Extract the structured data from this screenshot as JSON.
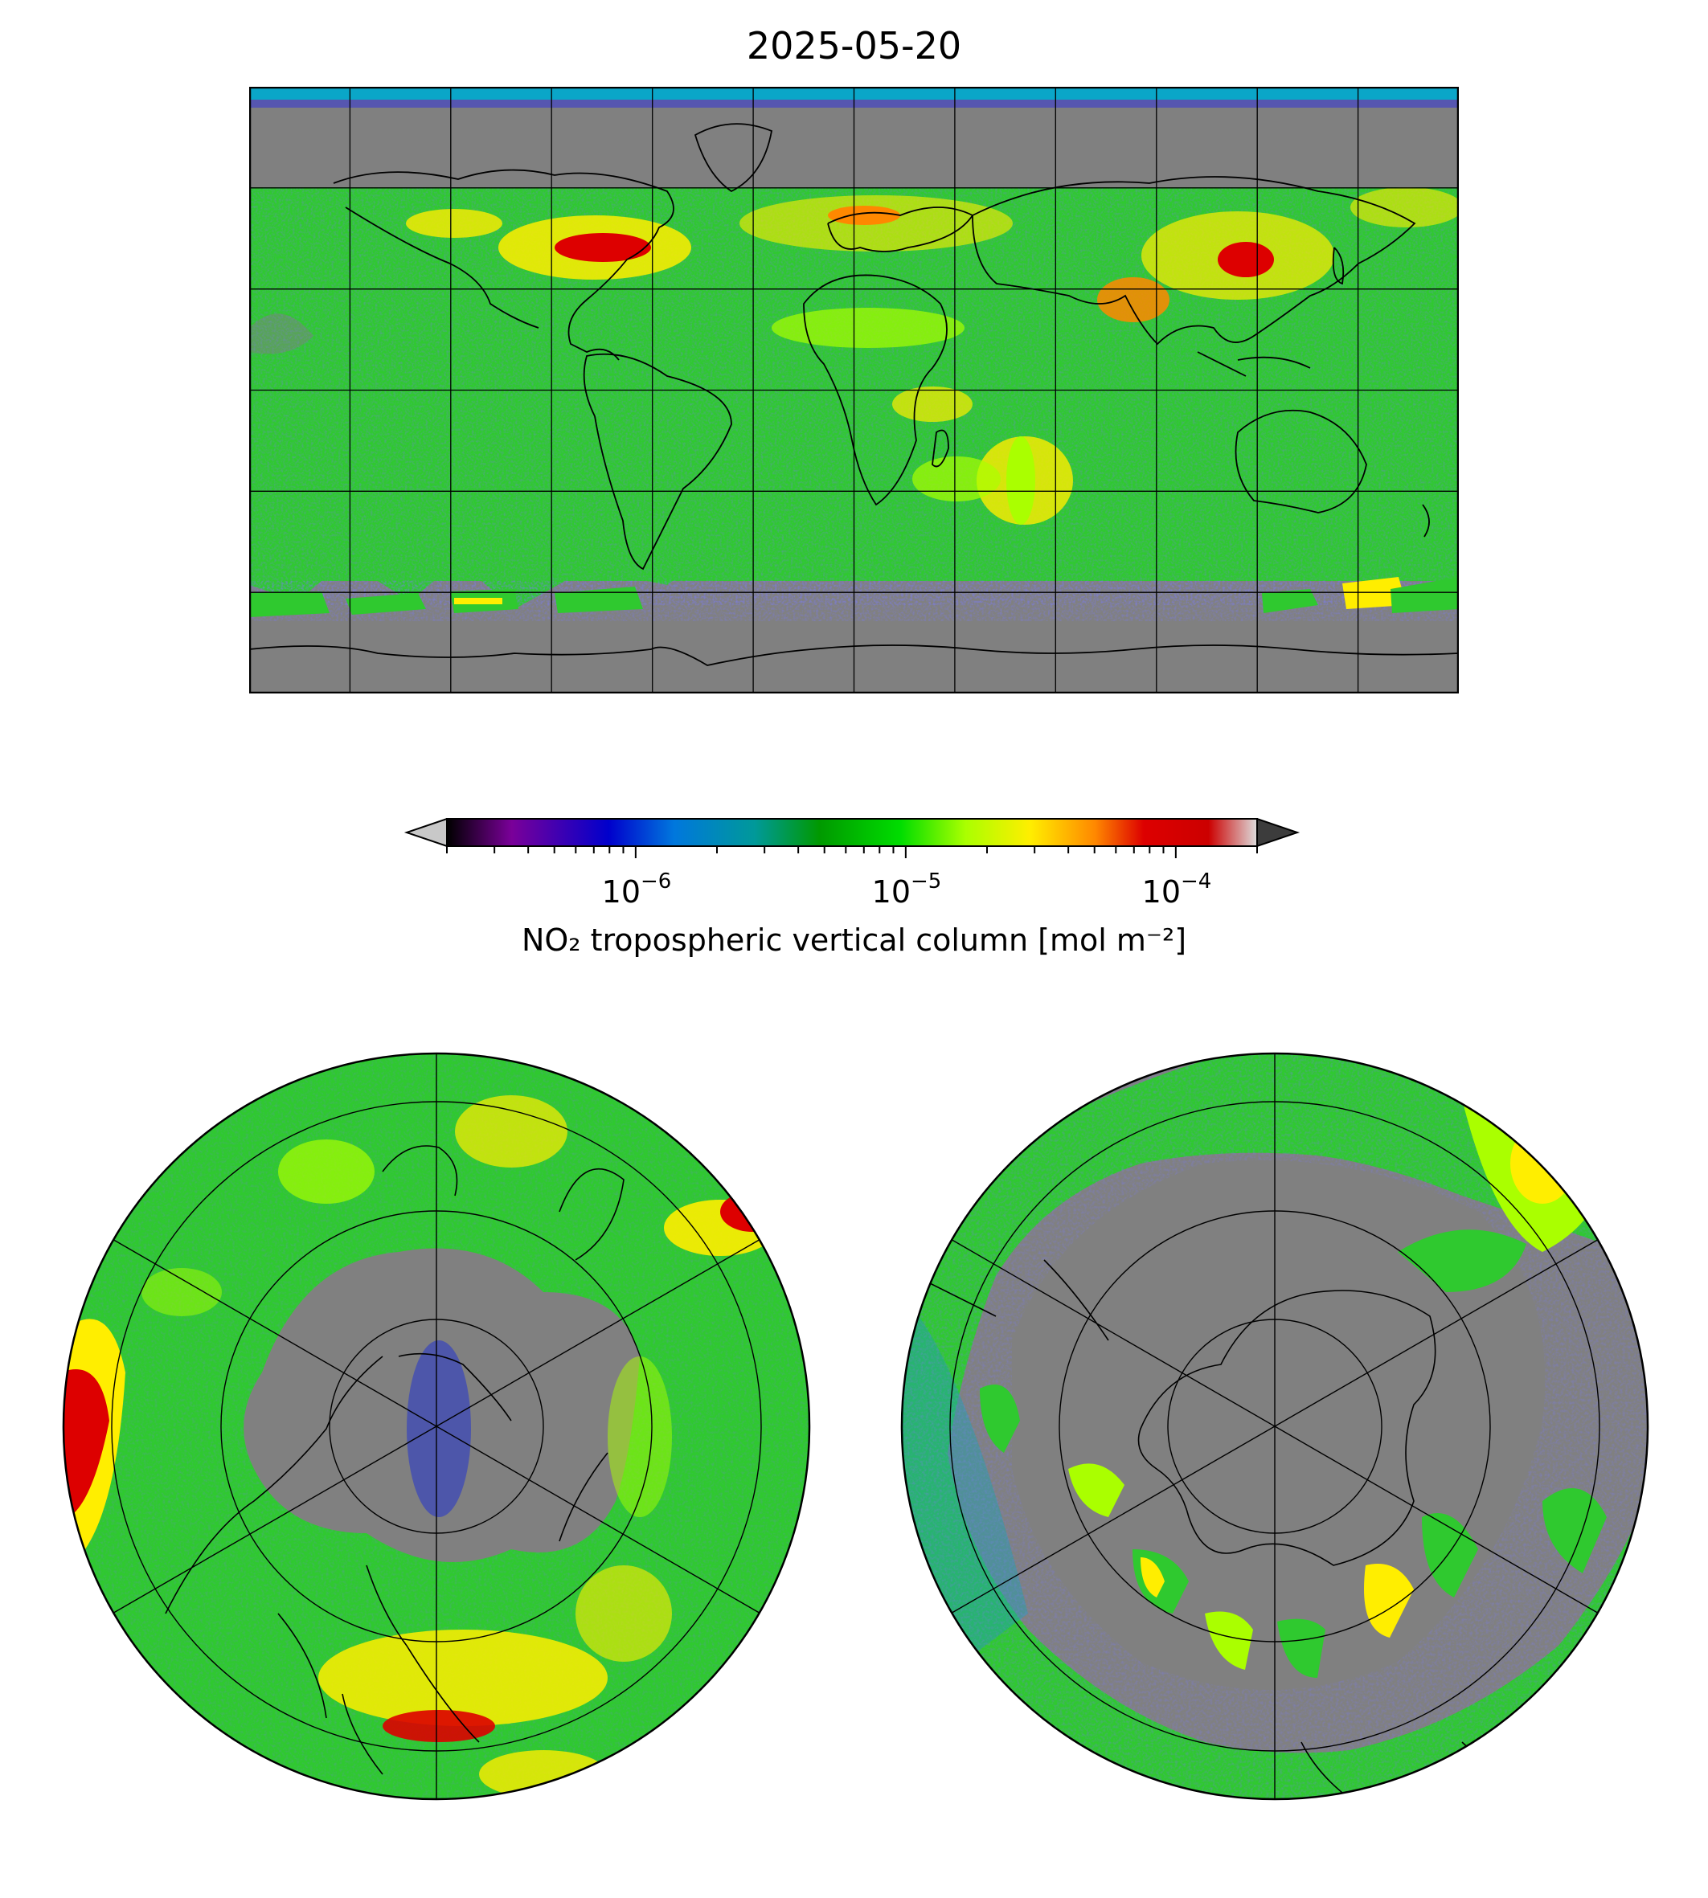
{
  "title": "2025-05-20",
  "colorbar": {
    "label": "NO₂ tropospheric vertical column [mol m⁻²]",
    "scale": "log",
    "range": [
      2e-07,
      0.0002
    ],
    "ticks": [
      {
        "value": 1e-06,
        "base": "10",
        "exp": "−6"
      },
      {
        "value": 1e-05,
        "base": "10",
        "exp": "−5"
      },
      {
        "value": 0.0001,
        "base": "10",
        "exp": "−4"
      }
    ],
    "extend": "both",
    "stops": [
      "#000000",
      "#7a0099",
      "#0000cc",
      "#0077dd",
      "#009999",
      "#009900",
      "#00dd00",
      "#aaff00",
      "#ffee00",
      "#ff8800",
      "#dd0000",
      "#cc0000",
      "#dddddd"
    ],
    "under_color": "#c8c8c8",
    "over_color": "#3c3c3c"
  },
  "maps": {
    "global": {
      "projection": "PlateCarree",
      "extent_lon": [
        -180,
        180
      ],
      "extent_lat": [
        -90,
        90
      ],
      "gridline_step_deg": 30
    },
    "north_polar": {
      "projection": "NorthPolarStereo"
    },
    "south_polar": {
      "projection": "SouthPolarStereo"
    }
  },
  "colors": {
    "no_data": "#808080",
    "background_field": "#33cc33",
    "coastline": "#000000",
    "gridline": "#000000"
  }
}
